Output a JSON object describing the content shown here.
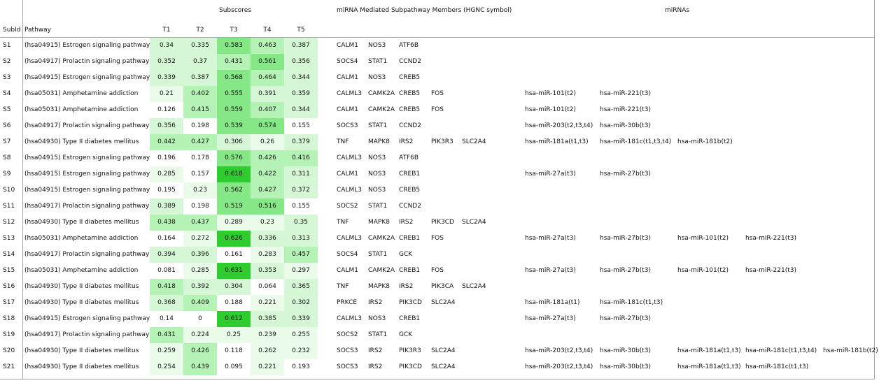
{
  "headers": {
    "subscores": "Subscores",
    "members": "miRNA Mediated Subpathway Members  (HGNC symbol)",
    "mirnas": "miRNAs",
    "subid": "SubId",
    "pathway": "Pathway",
    "t1": "T1",
    "t2": "T2",
    "t3": "T3",
    "t4": "T4",
    "t5": "T5"
  },
  "rows": [
    {
      "id": "S1",
      "pathway": "(hsa04915) Estrogen signaling pathway",
      "t": [
        "0.34",
        "0.335",
        "0.583",
        "0.463",
        "0.387"
      ],
      "genes": [
        "CALM1",
        "NOS3",
        "ATF6B"
      ],
      "mirnas": []
    },
    {
      "id": "S2",
      "pathway": "(hsa04917) Prolactin signaling pathway",
      "t": [
        "0.352",
        "0.37",
        "0.431",
        "0.561",
        "0.356"
      ],
      "genes": [
        "SOCS4",
        "STAT1",
        "CCND2"
      ],
      "mirnas": []
    },
    {
      "id": "S3",
      "pathway": "(hsa04915) Estrogen signaling pathway",
      "t": [
        "0.339",
        "0.387",
        "0.568",
        "0.464",
        "0.344"
      ],
      "genes": [
        "CALM1",
        "NOS3",
        "CREB5"
      ],
      "mirnas": []
    },
    {
      "id": "S4",
      "pathway": "(hsa05031) Amphetamine addiction",
      "t": [
        "0.21",
        "0.402",
        "0.555",
        "0.391",
        "0.359"
      ],
      "genes": [
        "CALML3",
        "CAMK2A",
        "CREB5",
        "FOS"
      ],
      "mirnas": [
        "hsa-miR-101(t2)",
        "hsa-miR-221(t3)"
      ]
    },
    {
      "id": "S5",
      "pathway": "(hsa05031) Amphetamine addiction",
      "t": [
        "0.126",
        "0.415",
        "0.559",
        "0.407",
        "0.344"
      ],
      "genes": [
        "CALM1",
        "CAMK2A",
        "CREB5",
        "FOS"
      ],
      "mirnas": [
        "hsa-miR-101(t2)",
        "hsa-miR-221(t3)"
      ]
    },
    {
      "id": "S6",
      "pathway": "(hsa04917) Prolactin signaling pathway",
      "t": [
        "0.356",
        "0.198",
        "0.539",
        "0.574",
        "0.155"
      ],
      "genes": [
        "SOCS3",
        "STAT1",
        "CCND2"
      ],
      "mirnas": [
        "hsa-miR-203(t2,t3,t4)",
        "hsa-miR-30b(t3)"
      ]
    },
    {
      "id": "S7",
      "pathway": "(hsa04930) Type II diabetes mellitus",
      "t": [
        "0.442",
        "0.427",
        "0.306",
        "0.26",
        "0.379"
      ],
      "genes": [
        "TNF",
        "MAPK8",
        "IRS2",
        "PIK3R3",
        "SLC2A4"
      ],
      "mirnas": [
        "hsa-miR-181a(t1,t3)",
        "hsa-miR-181c(t1,t3,t4)",
        "hsa-miR-181b(t2)"
      ]
    },
    {
      "id": "S8",
      "pathway": "(hsa04915) Estrogen signaling pathway",
      "t": [
        "0.196",
        "0.178",
        "0.576",
        "0.426",
        "0.416"
      ],
      "genes": [
        "CALML3",
        "NOS3",
        "ATF6B"
      ],
      "mirnas": []
    },
    {
      "id": "S9",
      "pathway": "(hsa04915) Estrogen signaling pathway",
      "t": [
        "0.285",
        "0.157",
        "0.618",
        "0.422",
        "0.311"
      ],
      "genes": [
        "CALM1",
        "NOS3",
        "CREB1"
      ],
      "mirnas": [
        "hsa-miR-27a(t3)",
        "hsa-miR-27b(t3)"
      ]
    },
    {
      "id": "S10",
      "pathway": "(hsa04915) Estrogen signaling pathway",
      "t": [
        "0.195",
        "0.23",
        "0.562",
        "0.427",
        "0.372"
      ],
      "genes": [
        "CALML3",
        "NOS3",
        "CREB5"
      ],
      "mirnas": []
    },
    {
      "id": "S11",
      "pathway": "(hsa04917) Prolactin signaling pathway",
      "t": [
        "0.389",
        "0.198",
        "0.519",
        "0.516",
        "0.155"
      ],
      "genes": [
        "SOCS2",
        "STAT1",
        "CCND2"
      ],
      "mirnas": []
    },
    {
      "id": "S12",
      "pathway": "(hsa04930) Type II diabetes mellitus",
      "t": [
        "0.438",
        "0.437",
        "0.289",
        "0.23",
        "0.35"
      ],
      "genes": [
        "TNF",
        "MAPK8",
        "IRS2",
        "PIK3CD",
        "SLC2A4"
      ],
      "mirnas": []
    },
    {
      "id": "S13",
      "pathway": "(hsa05031) Amphetamine addiction",
      "t": [
        "0.164",
        "0.272",
        "0.626",
        "0.336",
        "0.313"
      ],
      "genes": [
        "CALML3",
        "CAMK2A",
        "CREB1",
        "FOS"
      ],
      "mirnas": [
        "hsa-miR-27a(t3)",
        "hsa-miR-27b(t3)",
        "hsa-miR-101(t2)",
        "hsa-miR-221(t3)"
      ]
    },
    {
      "id": "S14",
      "pathway": "(hsa04917) Prolactin signaling pathway",
      "t": [
        "0.394",
        "0.396",
        "0.161",
        "0.283",
        "0.457"
      ],
      "genes": [
        "SOCS4",
        "STAT1",
        "GCK"
      ],
      "mirnas": []
    },
    {
      "id": "S15",
      "pathway": "(hsa05031) Amphetamine addiction",
      "t": [
        "0.081",
        "0.285",
        "0.631",
        "0.353",
        "0.297"
      ],
      "genes": [
        "CALM1",
        "CAMK2A",
        "CREB1",
        "FOS"
      ],
      "mirnas": [
        "hsa-miR-27a(t3)",
        "hsa-miR-27b(t3)",
        "hsa-miR-101(t2)",
        "hsa-miR-221(t3)"
      ]
    },
    {
      "id": "S16",
      "pathway": "(hsa04930) Type II diabetes mellitus",
      "t": [
        "0.418",
        "0.392",
        "0.304",
        "0.064",
        "0.365"
      ],
      "genes": [
        "TNF",
        "MAPK8",
        "IRS2",
        "PIK3CA",
        "SLC2A4"
      ],
      "mirnas": []
    },
    {
      "id": "S17",
      "pathway": "(hsa04930) Type II diabetes mellitus",
      "t": [
        "0.368",
        "0.409",
        "0.188",
        "0.221",
        "0.302"
      ],
      "genes": [
        "PRKCE",
        "IRS2",
        "PIK3CD",
        "SLC2A4"
      ],
      "mirnas": [
        "hsa-miR-181a(t1)",
        "hsa-miR-181c(t1,t3)"
      ]
    },
    {
      "id": "S18",
      "pathway": "(hsa04915) Estrogen signaling pathway",
      "t": [
        "0.14",
        "0",
        "0.612",
        "0.385",
        "0.339"
      ],
      "genes": [
        "CALML3",
        "NOS3",
        "CREB1"
      ],
      "mirnas": [
        "hsa-miR-27a(t3)",
        "hsa-miR-27b(t3)"
      ]
    },
    {
      "id": "S19",
      "pathway": "(hsa04917) Prolactin signaling pathway",
      "t": [
        "0.431",
        "0.224",
        "0.25",
        "0.239",
        "0.255"
      ],
      "genes": [
        "SOCS2",
        "STAT1",
        "GCK"
      ],
      "mirnas": []
    },
    {
      "id": "S20",
      "pathway": "(hsa04930) Type II diabetes mellitus",
      "t": [
        "0.259",
        "0.426",
        "0.118",
        "0.262",
        "0.232"
      ],
      "genes": [
        "SOCS3",
        "IRS2",
        "PIK3R3",
        "SLC2A4"
      ],
      "mirnas": [
        "hsa-miR-203(t2,t3,t4)",
        "hsa-miR-30b(t3)",
        "hsa-miR-181a(t1,t3)",
        "hsa-miR-181c(t1,t3,t4)",
        "hsa-miR-181b(t2)"
      ]
    },
    {
      "id": "S21",
      "pathway": "(hsa04930) Type II diabetes mellitus",
      "t": [
        "0.254",
        "0.439",
        "0.095",
        "0.221",
        "0.193"
      ],
      "genes": [
        "SOCS3",
        "IRS2",
        "PIK3CD",
        "SLC2A4"
      ],
      "mirnas": [
        "hsa-miR-203(t2,t3,t4)",
        "hsa-miR-30b(t3)",
        "hsa-miR-181a(t1,t3)",
        "hsa-miR-181c(t1,t3)"
      ]
    }
  ]
}
